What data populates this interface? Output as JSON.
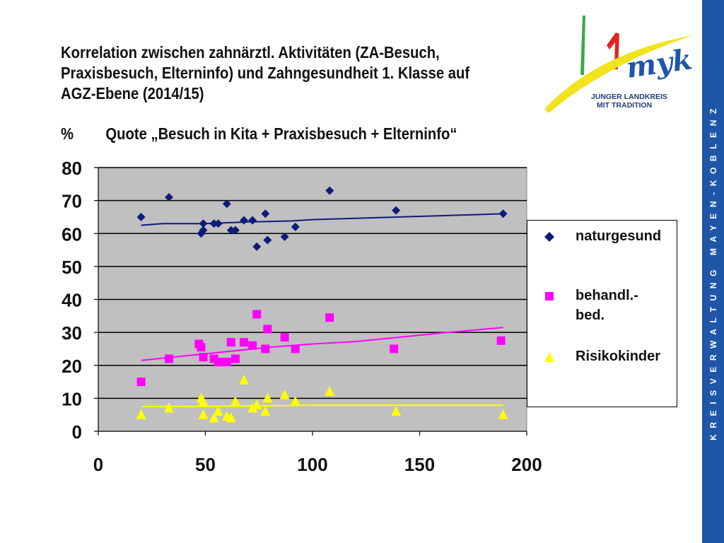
{
  "title_lines": [
    "Korrelation zwischen zahnärztl. Aktivitäten (ZA-Besuch,",
    "Praxisbesuch, Elterninfo) und Zahngesundheit 1. Klasse auf",
    "AGZ-Ebene (2014/15)"
  ],
  "subtitle": {
    "unit": "%",
    "text": "Quote „Besuch in Kita + Praxisbesuch + Elterninfo“"
  },
  "logo": {
    "brand": "myk",
    "slogan_line1": "JUNGER LANDKREIS",
    "slogan_line2": "MIT TRADITION",
    "colors": {
      "green": "#3aa84a",
      "red": "#e0261f",
      "yellow": "#f1e31c",
      "blue": "#1f56a8"
    }
  },
  "sidebar_text": "KREISVERWALTUNG MAYEN-KOBLENZ",
  "chart_data": {
    "type": "scatter",
    "xlim": [
      0,
      200
    ],
    "ylim": [
      0,
      80
    ],
    "x_ticks": [
      "0",
      "50",
      "100",
      "150",
      "200"
    ],
    "y_ticks": [
      "0",
      "10",
      "20",
      "30",
      "40",
      "50",
      "60",
      "70",
      "80"
    ],
    "grid": true,
    "plot_background": "#c0c0c0",
    "legend_position": "right",
    "series": [
      {
        "name": "naturgesund",
        "marker": "diamond",
        "color": "#0d1b7a",
        "points": [
          [
            20,
            65
          ],
          [
            33,
            71
          ],
          [
            48,
            60
          ],
          [
            49,
            61
          ],
          [
            49,
            63
          ],
          [
            54,
            63
          ],
          [
            56,
            63
          ],
          [
            60,
            69
          ],
          [
            62,
            61
          ],
          [
            64,
            61
          ],
          [
            68,
            64
          ],
          [
            72,
            64
          ],
          [
            74,
            56
          ],
          [
            78,
            66
          ],
          [
            79,
            58
          ],
          [
            87,
            59
          ],
          [
            92,
            62
          ],
          [
            108,
            73
          ],
          [
            139,
            67
          ],
          [
            189,
            66
          ]
        ],
        "trend": [
          [
            20,
            62.5
          ],
          [
            30,
            63
          ],
          [
            50,
            63
          ],
          [
            70,
            63.5
          ],
          [
            90,
            63.8
          ],
          [
            100,
            64.2
          ],
          [
            120,
            64.6
          ],
          [
            150,
            65.2
          ],
          [
            180,
            65.8
          ],
          [
            189,
            66
          ]
        ]
      },
      {
        "name": "behandl.-bed.",
        "marker": "square",
        "color": "#ff00ff",
        "points": [
          [
            20,
            15
          ],
          [
            33,
            22
          ],
          [
            47,
            26.5
          ],
          [
            48,
            25.5
          ],
          [
            49,
            22.5
          ],
          [
            54,
            22
          ],
          [
            56,
            21
          ],
          [
            58,
            21
          ],
          [
            60,
            21
          ],
          [
            62,
            27
          ],
          [
            64,
            22
          ],
          [
            68,
            27
          ],
          [
            72,
            26
          ],
          [
            74,
            35.5
          ],
          [
            78,
            25
          ],
          [
            79,
            31
          ],
          [
            87,
            28.5
          ],
          [
            92,
            25
          ],
          [
            108,
            34.5
          ],
          [
            138,
            25
          ],
          [
            188,
            27.5
          ]
        ],
        "trend": [
          [
            20,
            21.5
          ],
          [
            50,
            23.5
          ],
          [
            80,
            25.5
          ],
          [
            100,
            26.5
          ],
          [
            120,
            27.2
          ],
          [
            140,
            28.5
          ],
          [
            160,
            29.8
          ],
          [
            189,
            31.5
          ]
        ]
      },
      {
        "name": "Risikokinder",
        "marker": "triangle",
        "color": "#ffff00",
        "points": [
          [
            20,
            5
          ],
          [
            33,
            7
          ],
          [
            48,
            10
          ],
          [
            49,
            9
          ],
          [
            49,
            5
          ],
          [
            54,
            4
          ],
          [
            56,
            6
          ],
          [
            60,
            4.5
          ],
          [
            62,
            4
          ],
          [
            64,
            9
          ],
          [
            68,
            15.5
          ],
          [
            72,
            7
          ],
          [
            74,
            8
          ],
          [
            78,
            6
          ],
          [
            79,
            10
          ],
          [
            87,
            11
          ],
          [
            92,
            9
          ],
          [
            108,
            12
          ],
          [
            139,
            6
          ],
          [
            189,
            5
          ]
        ],
        "trend": [
          [
            20,
            7.5
          ],
          [
            60,
            7.6
          ],
          [
            100,
            7.9
          ],
          [
            140,
            7.9
          ],
          [
            189,
            7.9
          ]
        ]
      }
    ]
  }
}
